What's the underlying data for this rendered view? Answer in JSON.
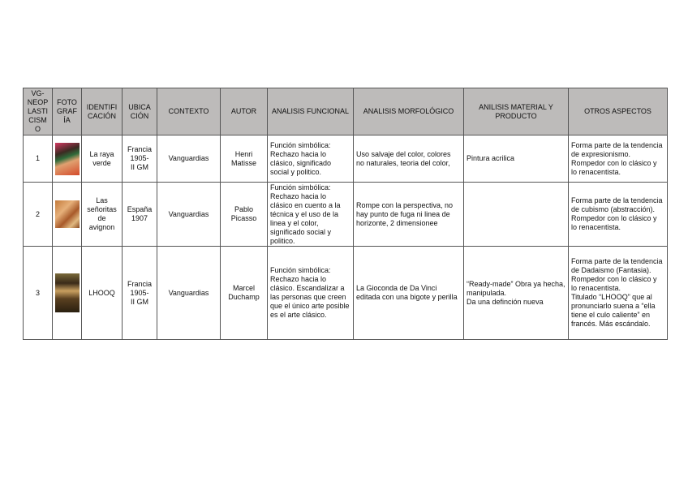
{
  "headers": [
    "VG-\nNEOP\nLASTI\nCISM\nO",
    "FOTO\nGRAF\nÍA",
    "IDENTIFI\nCACIÓN",
    "UBICA\nCIÓN",
    "CONTEXTO",
    "AUTOR",
    "ANALISIS FUNCIONAL",
    "ANALISIS MORFOLÓGICO",
    "ANILISIS MATERIAL Y\nPRODUCTO",
    "OTROS ASPECTOS"
  ],
  "rows": [
    {
      "num": "1",
      "photo": "La raya verde thumbnail",
      "identificacion": "La raya\nverde",
      "ubicacion": "Francia\n1905-\nII GM",
      "contexto": "Vanguardias",
      "autor": "Henri\nMatisse",
      "funcional": "Función simbólica: Rechazo hacia lo clásico, significado social y politico.",
      "morfologico": "Uso salvaje del color, colores no naturales, teoria del color,",
      "material": "Pintura acrilica",
      "otros": "Forma parte de la tendencia de expresionismo.\nRompedor con lo clásico y lo renacentista."
    },
    {
      "num": "2",
      "photo": "Las señoritas de avignon thumbnail",
      "identificacion": "Las\nseñoritas\nde\navignon",
      "ubicacion": "España\n1907",
      "contexto": "Vanguardias",
      "autor": "Pablo\nPicasso",
      "funcional": "Función simbólica: Rechazo hacia lo clásico en cuento a la técnica y el uso de la linea y el color, significado social y politico.",
      "morfologico": "Rompe con la perspectiva, no hay punto de fuga ni linea de horizonte, 2 dimensionee",
      "material": "",
      "otros": "Forma parte de la tendencia de cubismo (abstracción). Rompedor con lo clásico y lo renacentista."
    },
    {
      "num": "3",
      "photo": "LHOOQ thumbnail",
      "identificacion": "LHOOQ",
      "ubicacion": "Francia\n1905-\nII GM",
      "contexto": "Vanguardias",
      "autor": "Marcel\nDuchamp",
      "funcional": "Función simbólica: Rechazo hacia lo clásico. Escandalizar a las personas que creen que el único arte posible es el arte clásico.",
      "morfologico": "La Gioconda de Da Vinci editada con una bigote y perilla",
      "material": "“Ready-made” Obra ya hecha, manipulada.\nDa una definción nueva",
      "otros": "Forma parte de la tendencia de Dadaismo (Fantasia). Rompedor con lo clásico y lo renacentista.\nTitulado “LHOOQ” que al pronunciarlo suena a “ella tiene el culo caliente” en francés. Más escándalo."
    }
  ],
  "colors": {
    "header_bg": "#bdbbba",
    "border": "#555555"
  }
}
